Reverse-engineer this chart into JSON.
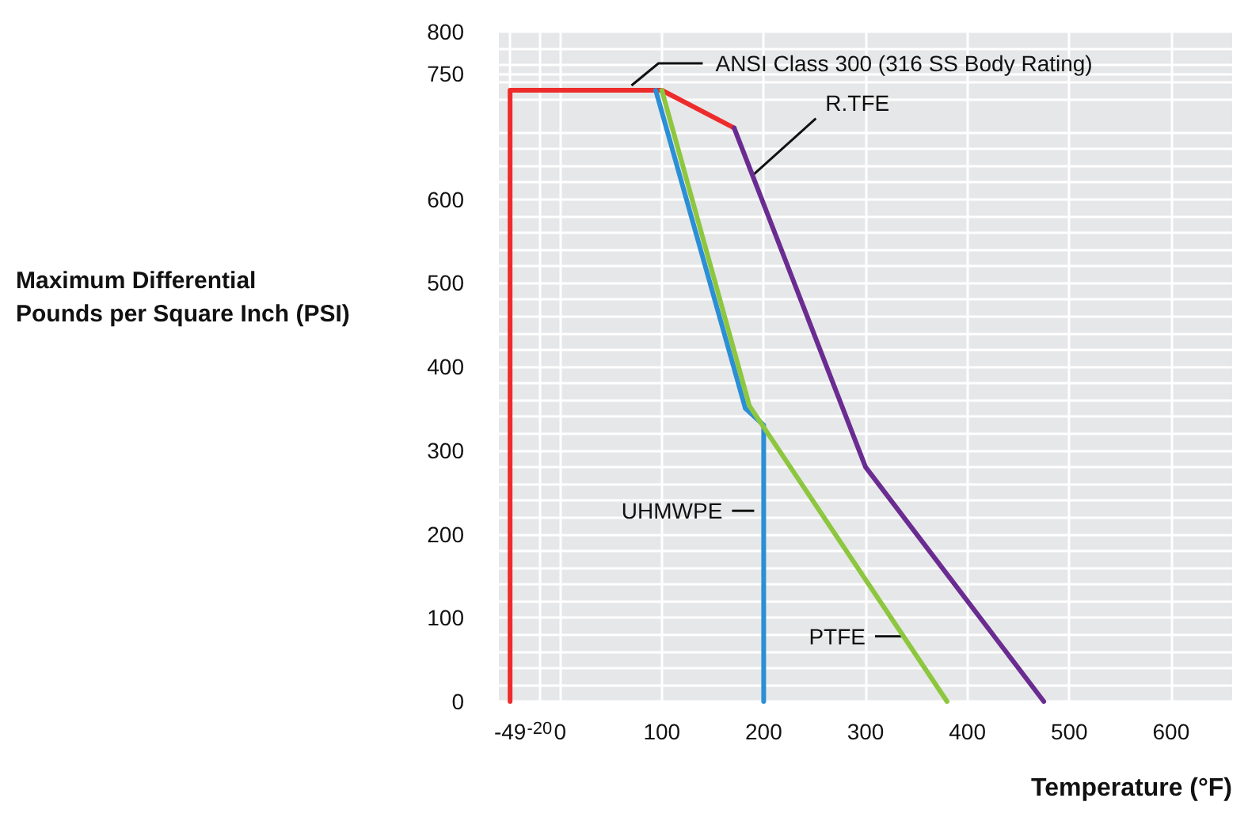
{
  "chart_data": {
    "type": "line",
    "xlabel": "Temperature (°F)",
    "ylabel": "Maximum Differential\nPounds per Square Inch (PSI)",
    "series": [
      {
        "name": "ANSI Class 300 (316 SS Body Rating)",
        "color": "#ee2b2b",
        "x": [
          -49,
          -49,
          100,
          171
        ],
        "values": [
          0,
          730,
          730,
          685
        ]
      },
      {
        "name": "R.TFE",
        "color": "#6a2c91",
        "x": [
          171,
          300,
          475
        ],
        "values": [
          685,
          280,
          0
        ]
      },
      {
        "name": "UHMWPE",
        "color": "#2b8fd6",
        "x": [
          94,
          182,
          200,
          200
        ],
        "values": [
          730,
          350,
          330,
          0
        ]
      },
      {
        "name": "PTFE",
        "color": "#8dc63f",
        "x": [
          100,
          186,
          380
        ],
        "values": [
          730,
          353,
          0
        ]
      }
    ],
    "xlim": [
      -60,
      660
    ],
    "xticks": [
      -49,
      -20,
      0,
      100,
      200,
      300,
      400,
      500,
      600
    ],
    "ylim": [
      0,
      800
    ],
    "yticks": [
      0,
      100,
      200,
      300,
      400,
      500,
      600,
      750,
      800
    ],
    "grid": true,
    "legend": false,
    "marker": "none",
    "line_style": "solid"
  }
}
